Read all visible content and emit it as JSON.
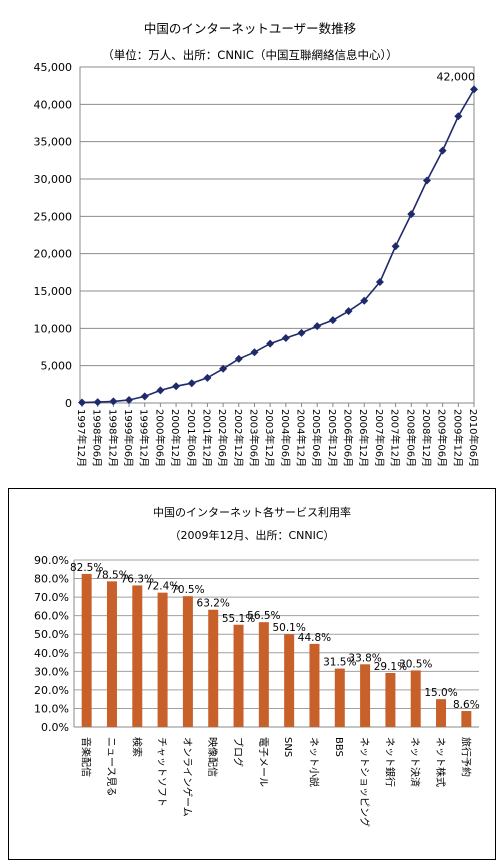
{
  "chart_data": [
    {
      "type": "line",
      "title": "中国のインターネットユーザー数推移",
      "subtitle": "（単位：万人、出所：CNNIC（中国互聯網絡信息中心））",
      "xlabel": "",
      "ylabel": "",
      "ylim": [
        0,
        45000
      ],
      "yticks": [
        "0",
        "5,000",
        "10,000",
        "15,000",
        "20,000",
        "25,000",
        "30,000",
        "35,000",
        "40,000",
        "45,000"
      ],
      "categories": [
        "1997年12月",
        "1998年06月",
        "1998年12月",
        "1999年06月",
        "1999年12月",
        "2000年06月",
        "2000年12月",
        "2001年06月",
        "2001年12月",
        "2002年06月",
        "2002年12月",
        "2003年06月",
        "2003年12月",
        "2004年06月",
        "2004年12月",
        "2005年06月",
        "2005年12月",
        "2006年06月",
        "2006年12月",
        "2007年06月",
        "2007年12月",
        "2008年06月",
        "2008年12月",
        "2009年06月",
        "2009年12月",
        "2010年06月"
      ],
      "series": [
        {
          "values": [
            62,
            117,
            210,
            400,
            890,
            1690,
            2250,
            2650,
            3370,
            4580,
            5910,
            6800,
            7950,
            8700,
            9400,
            10300,
            11100,
            12300,
            13700,
            16200,
            21000,
            25300,
            29800,
            33800,
            38400,
            42000
          ]
        }
      ],
      "annotations": [
        {
          "text": "42,000"
        }
      ],
      "grid": true,
      "legend": "none",
      "line_color": "#1f2a6b"
    },
    {
      "type": "bar",
      "title": "中国のインターネット各サービス利用率",
      "subtitle": "（2009年12月、出所：CNNIC）",
      "xlabel": "",
      "ylabel": "",
      "ylim": [
        0,
        90
      ],
      "yticks": [
        "0.0%",
        "10.0%",
        "20.0%",
        "30.0%",
        "40.0%",
        "50.0%",
        "60.0%",
        "70.0%",
        "80.0%",
        "90.0%"
      ],
      "categories": [
        "音楽配信",
        "ニュース見る",
        "検索",
        "チャットソフト",
        "オンラインゲーム",
        "映像配信",
        "ブログ",
        "電子メール",
        "SNS",
        "ネット小説",
        "BBS",
        "ネットショッピング",
        "ネット銀行",
        "ネット決済",
        "ネット株式",
        "旅行予約"
      ],
      "values": [
        82.5,
        78.5,
        76.3,
        72.4,
        70.5,
        63.2,
        55.1,
        56.5,
        50.1,
        44.8,
        31.5,
        33.8,
        29.1,
        30.5,
        15.0,
        8.6
      ],
      "labels": [
        "82.5%",
        "78.5%",
        "76.3%",
        "72.4%",
        "70.5%",
        "63.2%",
        "55.1%",
        "56.5%",
        "50.1%",
        "44.8%",
        "31.5%",
        "33.8%",
        "29.1%",
        "30.5%",
        "15.0%",
        "8.6%"
      ],
      "grid": true,
      "legend": "none",
      "bar_color": "#c8602a"
    }
  ]
}
